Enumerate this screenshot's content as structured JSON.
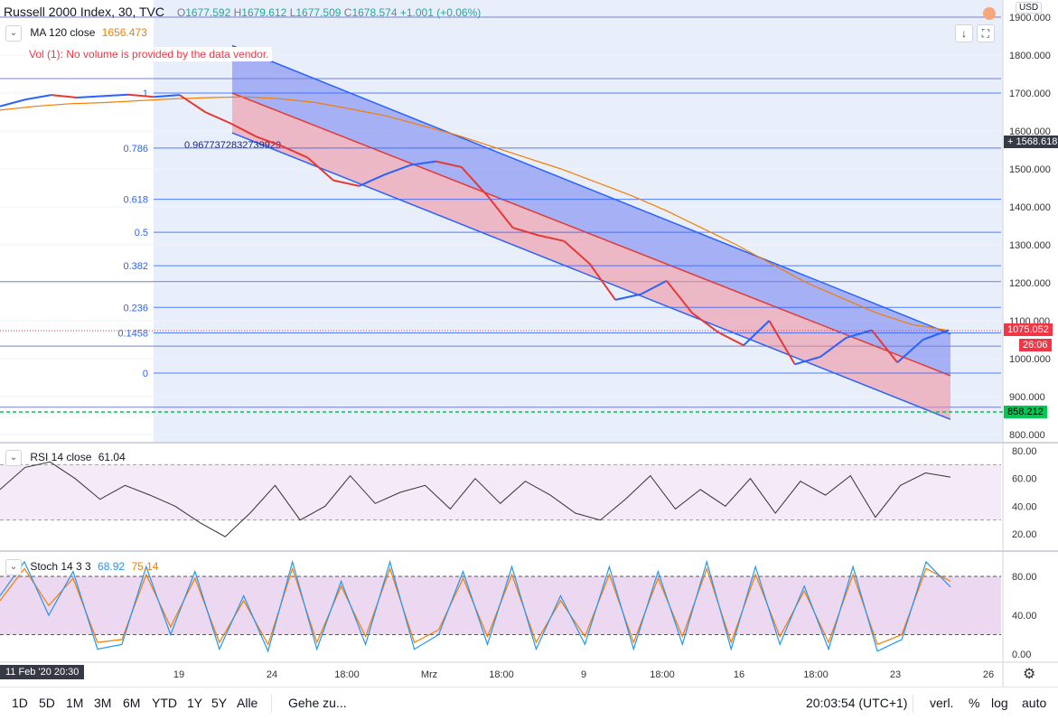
{
  "header": {
    "symbol": "Russell 2000 Index",
    "interval": "30",
    "source": "TVC",
    "open_label": "O",
    "open": "1677.592",
    "high_label": "H",
    "high": "1679.612",
    "low_label": "L",
    "low": "1677.509",
    "close_label": "C",
    "close": "1678.574",
    "change": "+1.001 (+0.06%)"
  },
  "ma": {
    "label": "MA 120 close",
    "value": "1656.473",
    "color": "#f57c00"
  },
  "volume_warning": "Vol (1): No volume is provided by the data vendor.",
  "currency": "USD",
  "rsi": {
    "label": "RSI 14 close",
    "value": "61.04"
  },
  "stoch": {
    "label": "Stoch 14 3 3",
    "k": "68.92",
    "d": "75.14",
    "k_color": "#2196f3",
    "d_color": "#f57c00"
  },
  "price_tags": {
    "crosshair": "1568.618",
    "last": "1075.052",
    "countdown": "26:06",
    "green_line": "858.212"
  },
  "fib_levels": [
    {
      "label": "1",
      "price": 1700
    },
    {
      "label": "0.786",
      "price": 1555
    },
    {
      "label": "0.618",
      "price": 1420
    },
    {
      "label": "0.5",
      "price": 1333
    },
    {
      "label": "0.382",
      "price": 1245
    },
    {
      "label": "0.236",
      "price": 1135
    },
    {
      "label": "0.1458",
      "price": 1068
    },
    {
      "label": "0",
      "price": 962
    }
  ],
  "channel_label": "0.9677372832739929",
  "time_labels": [
    "19",
    "24",
    "18:00",
    "Mrz",
    "18:00",
    "9",
    "18:00",
    "16",
    "18:00",
    "23",
    "26"
  ],
  "date_tag": "11 Feb '20  20:30",
  "bottom": {
    "ranges": [
      "1D",
      "5D",
      "1M",
      "3M",
      "6M",
      "YTD",
      "1Y",
      "5Y",
      "Alle"
    ],
    "goto": "Gehe zu...",
    "clock": "20:03:54 (UTC+1)",
    "adj": "verl.",
    "pct": "%",
    "log": "log",
    "auto": "auto"
  },
  "chart_data": [
    {
      "type": "line",
      "title": "Russell 2000 Index, 30, TVC",
      "ylim": [
        780,
        1920
      ],
      "price_axis_ticks": [
        "1900.000",
        "1800.000",
        "1700.000",
        "1600.000",
        "1500.000",
        "1400.000",
        "1300.000",
        "1200.000",
        "1100.000",
        "1000.000",
        "900.000",
        "800.000"
      ],
      "series": [
        {
          "name": "Price (approx. close)",
          "values": [
            1665,
            1683,
            1695,
            1688,
            1692,
            1696,
            1690,
            1695,
            1650,
            1620,
            1585,
            1560,
            1530,
            1470,
            1455,
            1485,
            1510,
            1520,
            1505,
            1430,
            1345,
            1325,
            1310,
            1250,
            1155,
            1170,
            1205,
            1120,
            1070,
            1035,
            1100,
            985,
            1005,
            1055,
            1075,
            990,
            1050,
            1075
          ]
        },
        {
          "name": "MA 120 close",
          "values": [
            1655,
            1665,
            1672,
            1675,
            1680,
            1685,
            1688,
            1690,
            1685,
            1675,
            1658,
            1640,
            1615,
            1590,
            1560,
            1530,
            1500,
            1465,
            1430,
            1390,
            1345,
            1300,
            1250,
            1200,
            1160,
            1120,
            1090,
            1075
          ]
        }
      ]
    },
    {
      "type": "line",
      "title": "RSI 14 close",
      "ylim": [
        10,
        85
      ],
      "ticks": [
        "80.00",
        "60.00",
        "40.00",
        "20.00"
      ],
      "series": [
        {
          "name": "RSI",
          "values": [
            52,
            68,
            72,
            60,
            45,
            55,
            48,
            40,
            28,
            18,
            35,
            55,
            30,
            40,
            62,
            42,
            50,
            55,
            38,
            60,
            42,
            58,
            48,
            35,
            30,
            45,
            62,
            38,
            52,
            40,
            60,
            35,
            58,
            48,
            62,
            32,
            55,
            64,
            61
          ]
        }
      ]
    },
    {
      "type": "line",
      "title": "Stoch 14 3 3",
      "ylim": [
        -5,
        105
      ],
      "ticks": [
        "80.00",
        "40.00",
        "0.00"
      ],
      "series": [
        {
          "name": "%K",
          "values": [
            60,
            95,
            40,
            85,
            5,
            10,
            90,
            20,
            85,
            5,
            60,
            3,
            95,
            5,
            75,
            10,
            95,
            5,
            20,
            85,
            10,
            90,
            5,
            60,
            10,
            90,
            5,
            85,
            10,
            95,
            5,
            90,
            10,
            70,
            5,
            90,
            3,
            15,
            95,
            69
          ]
        },
        {
          "name": "%D",
          "values": [
            55,
            88,
            50,
            78,
            12,
            15,
            82,
            28,
            78,
            12,
            55,
            10,
            88,
            12,
            70,
            18,
            88,
            12,
            25,
            78,
            18,
            82,
            12,
            55,
            18,
            82,
            12,
            78,
            18,
            88,
            12,
            82,
            18,
            65,
            12,
            82,
            10,
            20,
            88,
            75
          ]
        }
      ]
    }
  ]
}
